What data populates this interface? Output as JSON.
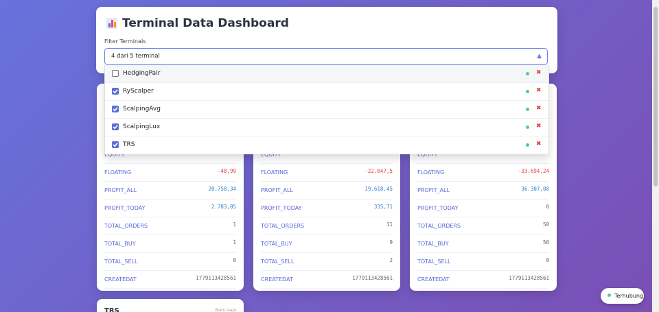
{
  "header": {
    "title": "Terminal Data Dashboard"
  },
  "filter": {
    "label": "Filter Terminals",
    "summary": "4 dari 5 terminal",
    "options": [
      {
        "name": "HedgingPair",
        "checked": false
      },
      {
        "name": "RyScalper",
        "checked": true
      },
      {
        "name": "ScalpingAvg",
        "checked": true
      },
      {
        "name": "ScalpingLux",
        "checked": true
      },
      {
        "name": "TRS",
        "checked": true
      }
    ]
  },
  "cards": [
    {
      "rows": [
        {
          "label": "EQUITY"
        },
        {
          "label": "FLOATING",
          "value": "-48,99"
        },
        {
          "label": "PROFIT_ALL",
          "value": "20.758,34"
        },
        {
          "label": "PROFIT_TODAY",
          "value": "2.783,05"
        },
        {
          "label": "TOTAL_ORDERS",
          "value": "1"
        },
        {
          "label": "TOTAL_BUY",
          "value": "1"
        },
        {
          "label": "TOTAL_SELL",
          "value": "0"
        },
        {
          "label": "CREATEDAT",
          "value": "1779113428561"
        }
      ]
    },
    {
      "rows": [
        {
          "label": "EQUITY"
        },
        {
          "label": "FLOATING",
          "value": "-22.047,5"
        },
        {
          "label": "PROFIT_ALL",
          "value": "19.618,45"
        },
        {
          "label": "PROFIT_TODAY",
          "value": "335,71"
        },
        {
          "label": "TOTAL_ORDERS",
          "value": "11"
        },
        {
          "label": "TOTAL_BUY",
          "value": "9"
        },
        {
          "label": "TOTAL_SELL",
          "value": "2"
        },
        {
          "label": "CREATEDAT",
          "value": "1779113428561"
        }
      ]
    },
    {
      "rows": [
        {
          "label": "EQUITY"
        },
        {
          "label": "FLOATING",
          "value": "-33.694,24"
        },
        {
          "label": "PROFIT_ALL",
          "value": "36.307,08"
        },
        {
          "label": "PROFIT_TODAY",
          "value": "0"
        },
        {
          "label": "TOTAL_ORDERS",
          "value": "50"
        },
        {
          "label": "TOTAL_BUY",
          "value": "50"
        },
        {
          "label": "TOTAL_SELL",
          "value": "0"
        },
        {
          "label": "CREATEDAT",
          "value": "1779113428561"
        }
      ]
    },
    {
      "title": "TRS",
      "updated": "Baru saja",
      "rows": []
    }
  ],
  "status": {
    "label": "Terhubung"
  }
}
